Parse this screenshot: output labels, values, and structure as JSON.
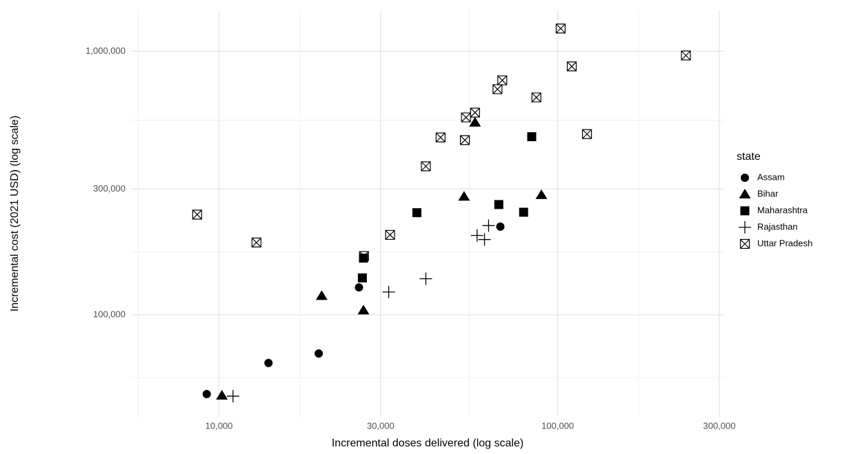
{
  "chart_data": {
    "type": "scatter",
    "xlabel": "Incremental doses delivered (log scale)",
    "ylabel": "Incremental cost (2021 USD) (log scale)",
    "legend_title": "state",
    "xscale": "log",
    "yscale": "log",
    "grid": true,
    "xlim": [
      5500,
      310000
    ],
    "ylim": [
      41000,
      1430000
    ],
    "xticks": [
      {
        "value": 10000,
        "label": "10,000"
      },
      {
        "value": 30000,
        "label": "30,000"
      },
      {
        "value": 100000,
        "label": "100,000"
      },
      {
        "value": 300000,
        "label": "300,000"
      }
    ],
    "yticks": [
      {
        "value": 100000,
        "label": "100,000"
      },
      {
        "value": 300000,
        "label": "300,000"
      },
      {
        "value": 1000000,
        "label": "1,000,000"
      }
    ],
    "series": [
      {
        "name": "Assam",
        "color": "#000000",
        "marker": "circle",
        "x": [
          9200,
          14000,
          19700,
          25900,
          67700
        ],
        "values": [
          50000,
          65600,
          71300,
          127000,
          216000
        ]
      },
      {
        "name": "Bihar",
        "color": "#000000",
        "marker": "triangle",
        "x": [
          10200,
          20100,
          26700,
          52900,
          57000,
          89500
        ],
        "values": [
          49400,
          118000,
          104000,
          281000,
          537000,
          285000
        ]
      },
      {
        "name": "Maharashtra",
        "color": "#000000",
        "marker": "square",
        "x": [
          26700,
          26500,
          38400,
          67000,
          79300,
          83800
        ],
        "values": [
          164000,
          138000,
          244000,
          262000,
          245000,
          474000
        ]
      },
      {
        "name": "Rajasthan",
        "color": "#000000",
        "marker": "plus",
        "x": [
          11000,
          31700,
          40800,
          57800,
          60800,
          62500
        ],
        "values": [
          49100,
          122000,
          137000,
          200000,
          193000,
          218000
        ]
      },
      {
        "name": "Uttar Pradesh",
        "color": "#000000",
        "marker": "boxx",
        "x": [
          8620,
          12900,
          26800,
          32000,
          40800,
          45100,
          53200,
          53600,
          57000,
          66400,
          68600,
          86500,
          102000,
          110000,
          122000,
          239000
        ],
        "values": [
          240000,
          188000,
          167000,
          201000,
          366000,
          471000,
          460000,
          561000,
          585000,
          718000,
          776000,
          668000,
          1220000,
          876000,
          485000,
          964000
        ]
      }
    ]
  }
}
